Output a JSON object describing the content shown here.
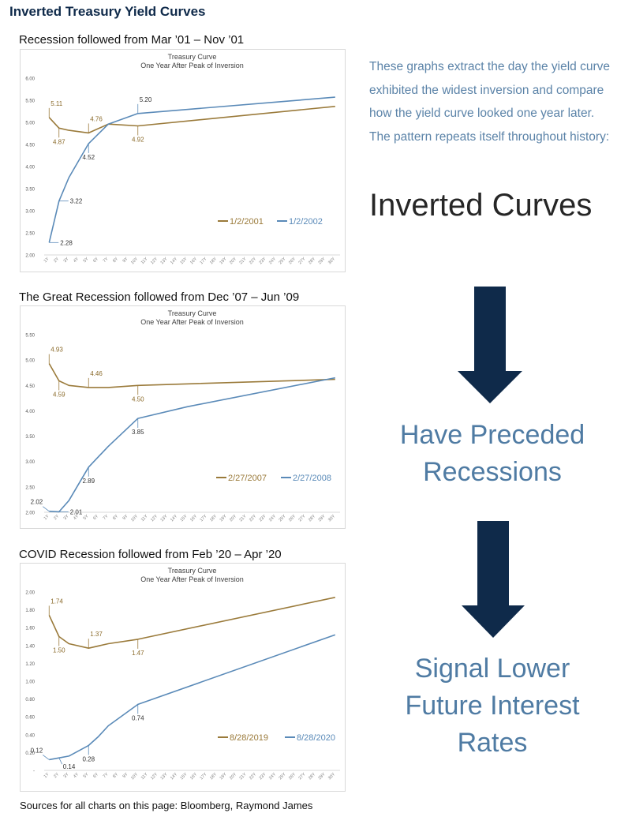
{
  "page_title": "Inverted Treasury Yield Curves",
  "intro_text": "These graphs extract the day the yield curve exhibited the widest inversion and compare how the yield curve looked one year later. The pattern repeats itself throughout history:",
  "headline": "Inverted Curves",
  "step1": [
    "Have Preceded",
    "Recessions"
  ],
  "step2": [
    "Signal Lower",
    "Future Interest",
    "Rates"
  ],
  "sources": "Sources for all charts on this page: Bloomberg, Raymond James",
  "colors": {
    "series_a": "#9a7a3a",
    "series_b": "#5a8ab8",
    "arrow": "#0f2a4a",
    "accent_text": "#4f7ba3"
  },
  "charts": [
    {
      "heading": "Recession followed from Mar ’01 – Nov ’01"
    },
    {
      "heading": "The Great Recession followed from Dec ’07 – Jun ’09"
    },
    {
      "heading": "COVID Recession followed from Feb ’20 – Apr ’20"
    }
  ],
  "chart_data": [
    {
      "type": "line",
      "title": "Treasury Curve",
      "subtitle": "One Year After Peak of Inversion",
      "x": [
        "1Y",
        "2Y",
        "3Y",
        "4Y",
        "5Y",
        "6Y",
        "7Y",
        "8Y",
        "9Y",
        "10Y",
        "11Y",
        "12Y",
        "13Y",
        "14Y",
        "15Y",
        "16Y",
        "17Y",
        "18Y",
        "19Y",
        "20Y",
        "21Y",
        "22Y",
        "23Y",
        "24Y",
        "25Y",
        "26Y",
        "27Y",
        "28Y",
        "29Y",
        "30Y"
      ],
      "ylim": [
        2.0,
        6.0
      ],
      "yticks": [
        "2.00",
        "2.50",
        "3.00",
        "3.50",
        "4.00",
        "4.50",
        "5.00",
        "5.50",
        "6.00"
      ],
      "legend": "bottom-right",
      "series": [
        {
          "name": "1/2/2001",
          "x": [
            1,
            2,
            3,
            5,
            7,
            10,
            30
          ],
          "values": [
            5.11,
            4.87,
            4.82,
            4.76,
            4.96,
            4.92,
            5.36
          ]
        },
        {
          "name": "1/2/2002",
          "x": [
            1,
            2,
            3,
            5,
            7,
            10,
            30
          ],
          "values": [
            2.28,
            3.22,
            3.75,
            4.52,
            4.96,
            5.2,
            5.57
          ]
        }
      ],
      "labels": [
        {
          "x": 1,
          "y": 5.11,
          "text": "5.11",
          "series": 0,
          "dir": "up"
        },
        {
          "x": 2,
          "y": 4.87,
          "text": "4.87",
          "series": 0,
          "dir": "down"
        },
        {
          "x": 5,
          "y": 4.76,
          "text": "4.76",
          "series": 0,
          "dir": "up"
        },
        {
          "x": 10,
          "y": 4.92,
          "text": "4.92",
          "series": 0,
          "dir": "down"
        },
        {
          "x": 1,
          "y": 2.28,
          "text": "2.28",
          "series": 1,
          "dir": "right"
        },
        {
          "x": 2,
          "y": 3.22,
          "text": "3.22",
          "series": 1,
          "dir": "right"
        },
        {
          "x": 5,
          "y": 4.52,
          "text": "4.52",
          "series": 1,
          "dir": "down"
        },
        {
          "x": 10,
          "y": 5.2,
          "text": "5.20",
          "series": 1,
          "dir": "up"
        }
      ]
    },
    {
      "type": "line",
      "title": "Treasury Curve",
      "subtitle": "One Year After Peak of Inversion",
      "x": [
        "1Y",
        "2Y",
        "3Y",
        "4Y",
        "5Y",
        "6Y",
        "7Y",
        "8Y",
        "9Y",
        "10Y",
        "11Y",
        "12Y",
        "13Y",
        "14Y",
        "15Y",
        "16Y",
        "17Y",
        "18Y",
        "19Y",
        "20Y",
        "21Y",
        "22Y",
        "23Y",
        "24Y",
        "25Y",
        "26Y",
        "27Y",
        "28Y",
        "29Y",
        "30Y"
      ],
      "ylim": [
        2.0,
        5.5
      ],
      "yticks": [
        "2.00",
        "2.50",
        "3.00",
        "3.50",
        "4.00",
        "4.50",
        "5.00",
        "5.50"
      ],
      "legend": "bottom-right",
      "series": [
        {
          "name": "2/27/2007",
          "x": [
            1,
            2,
            3,
            5,
            7,
            10,
            30
          ],
          "values": [
            4.93,
            4.59,
            4.5,
            4.46,
            4.46,
            4.5,
            4.62
          ]
        },
        {
          "name": "2/27/2008",
          "x": [
            1,
            2,
            3,
            5,
            7,
            10,
            15,
            30
          ],
          "values": [
            2.02,
            2.01,
            2.23,
            2.89,
            3.3,
            3.85,
            4.08,
            4.65
          ]
        }
      ],
      "labels": [
        {
          "x": 1,
          "y": 4.93,
          "text": "4.93",
          "series": 0,
          "dir": "up"
        },
        {
          "x": 2,
          "y": 4.59,
          "text": "4.59",
          "series": 0,
          "dir": "down"
        },
        {
          "x": 5,
          "y": 4.46,
          "text": "4.46",
          "series": 0,
          "dir": "up"
        },
        {
          "x": 10,
          "y": 4.5,
          "text": "4.50",
          "series": 0,
          "dir": "down"
        },
        {
          "x": 1,
          "y": 2.02,
          "text": "2.02",
          "series": 1,
          "dir": "upleft"
        },
        {
          "x": 2,
          "y": 2.01,
          "text": "2.01",
          "series": 1,
          "dir": "right"
        },
        {
          "x": 5,
          "y": 2.89,
          "text": "2.89",
          "series": 1,
          "dir": "down"
        },
        {
          "x": 10,
          "y": 3.85,
          "text": "3.85",
          "series": 1,
          "dir": "down"
        }
      ]
    },
    {
      "type": "line",
      "title": "Treasury Curve",
      "subtitle": "One Year After Peak of Inversion",
      "x": [
        "1Y",
        "2Y",
        "3Y",
        "4Y",
        "5Y",
        "6Y",
        "7Y",
        "8Y",
        "9Y",
        "10Y",
        "11Y",
        "12Y",
        "13Y",
        "14Y",
        "15Y",
        "16Y",
        "17Y",
        "18Y",
        "19Y",
        "20Y",
        "21Y",
        "22Y",
        "23Y",
        "24Y",
        "25Y",
        "26Y",
        "27Y",
        "28Y",
        "29Y",
        "30Y"
      ],
      "ylim": [
        0,
        2.0
      ],
      "yticks": [
        "-",
        "0.20",
        "0.40",
        "0.60",
        "0.80",
        "1.00",
        "1.20",
        "1.40",
        "1.60",
        "1.80",
        "2.00"
      ],
      "legend": "bottom-right",
      "series": [
        {
          "name": "8/28/2019",
          "x": [
            1,
            2,
            3,
            5,
            7,
            10,
            30
          ],
          "values": [
            1.74,
            1.5,
            1.42,
            1.37,
            1.42,
            1.47,
            1.94
          ]
        },
        {
          "name": "8/28/2020",
          "x": [
            1,
            2,
            3,
            5,
            6,
            7,
            10,
            30
          ],
          "values": [
            0.12,
            0.14,
            0.16,
            0.28,
            0.38,
            0.5,
            0.74,
            1.52
          ]
        }
      ],
      "labels": [
        {
          "x": 1,
          "y": 1.74,
          "text": "1.74",
          "series": 0,
          "dir": "up"
        },
        {
          "x": 2,
          "y": 1.5,
          "text": "1.50",
          "series": 0,
          "dir": "down"
        },
        {
          "x": 5,
          "y": 1.37,
          "text": "1.37",
          "series": 0,
          "dir": "up"
        },
        {
          "x": 10,
          "y": 1.47,
          "text": "1.47",
          "series": 0,
          "dir": "down"
        },
        {
          "x": 1,
          "y": 0.12,
          "text": "0.12",
          "series": 1,
          "dir": "upleft"
        },
        {
          "x": 2,
          "y": 0.14,
          "text": "0.14",
          "series": 1,
          "dir": "downright"
        },
        {
          "x": 5,
          "y": 0.28,
          "text": "0.28",
          "series": 1,
          "dir": "down"
        },
        {
          "x": 10,
          "y": 0.74,
          "text": "0.74",
          "series": 1,
          "dir": "down"
        }
      ]
    }
  ]
}
